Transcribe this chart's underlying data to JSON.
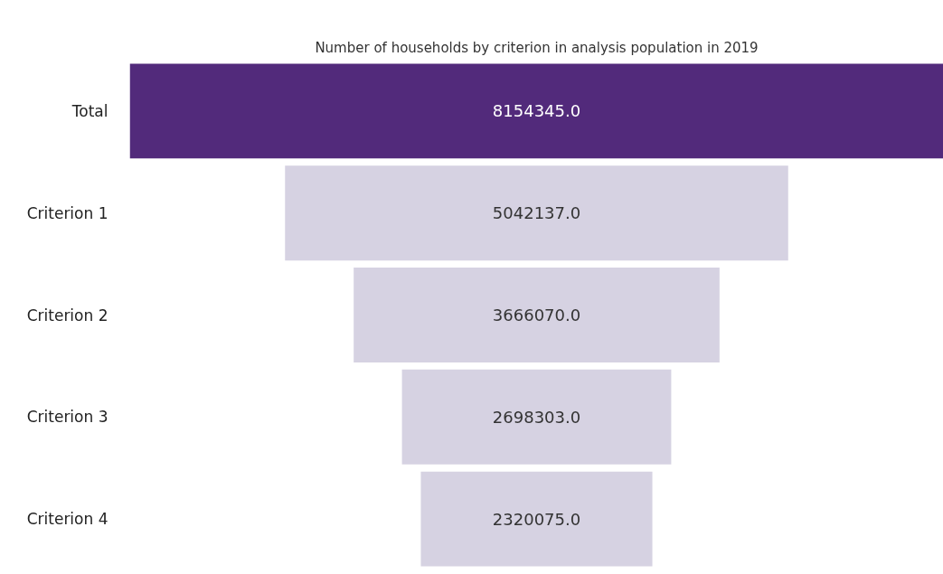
{
  "chart_data": {
    "type": "other",
    "title": "Number of households by criterion in analysis population in 2019",
    "categories": [
      "Total",
      "Criterion 1",
      "Criterion 2",
      "Criterion 3",
      "Criterion 4"
    ],
    "values": [
      8154345.0,
      5042137.0,
      3666070.0,
      2698303.0,
      2320075.0
    ],
    "value_labels": [
      "8154345.0",
      "5042137.0",
      "3666070.0",
      "2698303.0",
      "2320075.0"
    ],
    "colors": [
      "#522a7b",
      "#d6d2e2",
      "#d6d2e2",
      "#d6d2e2",
      "#d6d2e2"
    ]
  }
}
